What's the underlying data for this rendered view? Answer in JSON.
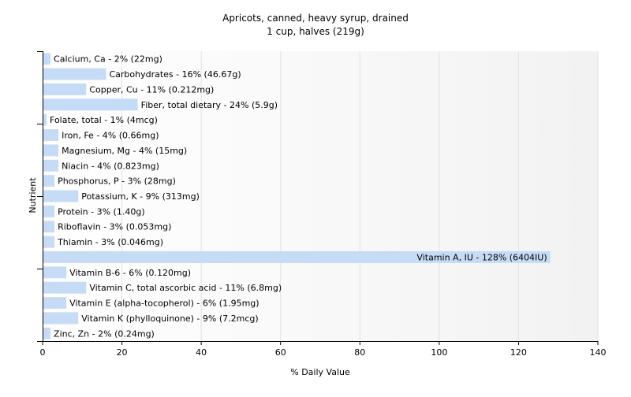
{
  "chart_data": {
    "type": "bar",
    "orientation": "horizontal",
    "title": "Apricots, canned, heavy syrup, drained",
    "subtitle": "1 cup, halves (219g)",
    "xlabel": "% Daily Value",
    "ylabel": "Nutrient",
    "xlim": [
      0,
      140
    ],
    "xticks": [
      0,
      20,
      40,
      60,
      80,
      100,
      120,
      140
    ],
    "grid": true,
    "colors": {
      "bar": "#c6dcf6",
      "grid": "#e2e2e2",
      "axis": "#000000"
    },
    "categories": [
      "Calcium, Ca - 2% (22mg)",
      "Carbohydrates - 16% (46.67g)",
      "Copper, Cu - 11% (0.212mg)",
      "Fiber, total dietary - 24% (5.9g)",
      "Folate, total - 1% (4mcg)",
      "Iron, Fe - 4% (0.66mg)",
      "Magnesium, Mg - 4% (15mg)",
      "Niacin - 4% (0.823mg)",
      "Phosphorus, P - 3% (28mg)",
      "Potassium, K - 9% (313mg)",
      "Protein - 3% (1.40g)",
      "Riboflavin - 3% (0.053mg)",
      "Thiamin - 3% (0.046mg)",
      "Vitamin A, IU - 128% (6404IU)",
      "Vitamin B-6 - 6% (0.120mg)",
      "Vitamin C, total ascorbic acid - 11% (6.8mg)",
      "Vitamin E (alpha-tocopherol) - 6% (1.95mg)",
      "Vitamin K (phylloquinone) - 9% (7.2mcg)",
      "Zinc, Zn - 2% (0.24mg)"
    ],
    "values": [
      2,
      16,
      11,
      24,
      1,
      4,
      4,
      4,
      3,
      9,
      3,
      3,
      3,
      128,
      6,
      11,
      6,
      9,
      2
    ]
  }
}
